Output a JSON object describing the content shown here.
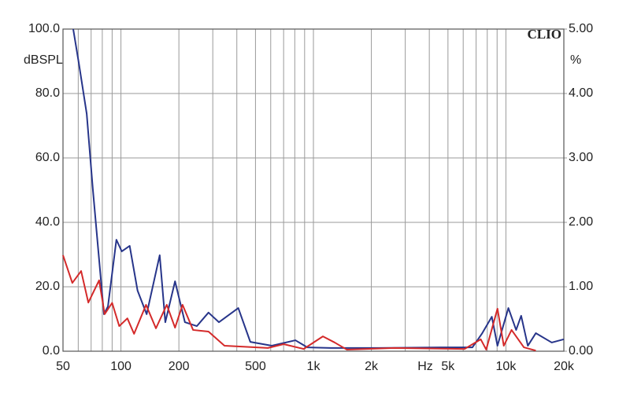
{
  "chart_data": {
    "type": "line",
    "brand": "CLIO",
    "ylabel": "dBSPL",
    "y2label": "%",
    "xlabel": "Hz",
    "xscale": "log",
    "grid": true,
    "xlim": [
      50,
      20000
    ],
    "xticks": [
      50,
      100,
      200,
      500,
      {
        "value": 1000,
        "label": "1k"
      },
      {
        "value": 2000,
        "label": "2k"
      },
      {
        "value": 5000,
        "label": "5k"
      },
      {
        "value": 10000,
        "label": "10k"
      },
      {
        "value": 20000,
        "label": "20k"
      }
    ],
    "xminor": [
      60,
      70,
      80,
      90,
      300,
      400,
      600,
      700,
      800,
      900,
      3000,
      4000,
      6000,
      7000,
      8000,
      9000
    ],
    "ylim": [
      0,
      100
    ],
    "yticks": [
      {
        "value": 0,
        "label": "0.0"
      },
      {
        "value": 20,
        "label": "20.0"
      },
      {
        "value": 40,
        "label": "40.0"
      },
      {
        "value": 60,
        "label": "60.0"
      },
      {
        "value": 80,
        "label": "80.0"
      },
      {
        "value": 100,
        "label": "100.0"
      }
    ],
    "y2lim": [
      0,
      5
    ],
    "y2ticks": [
      {
        "value": 0,
        "label": "0.00"
      },
      {
        "value": 1,
        "label": "1.00"
      },
      {
        "value": 2,
        "label": "2.00"
      },
      {
        "value": 3,
        "label": "3.00"
      },
      {
        "value": 4,
        "label": "4.00"
      },
      {
        "value": 5,
        "label": "5.00"
      }
    ],
    "series": [
      {
        "color": "#27358a",
        "x": [
          56.5,
          60.4,
          66.4,
          71.4,
          77,
          81.6,
          85.6,
          94.7,
          101,
          111,
          122,
          136,
          159,
          170,
          191,
          215,
          248,
          285,
          323,
          407,
          470,
          608,
          806,
          930,
          1230,
          2180,
          4600,
          6700,
          7500,
          8450,
          9040,
          10300,
          11300,
          12000,
          13000,
          14300,
          17300,
          20000
        ],
        "values": [
          100,
          89.5,
          73.7,
          50.5,
          28.5,
          11.5,
          13.9,
          34.6,
          31,
          32.7,
          18.8,
          11.5,
          29.8,
          9,
          21.7,
          9,
          7.8,
          12,
          9,
          13.4,
          2.9,
          1.7,
          3.4,
          1.2,
          1,
          1,
          1.2,
          1.2,
          5.4,
          10.7,
          1.7,
          13.4,
          6.6,
          11,
          1.7,
          5.6,
          2.7,
          3.7
        ]
      },
      {
        "color": "#d42a2a",
        "x": [
          50,
          55.9,
          62.1,
          67.7,
          77,
          82.3,
          90,
          98,
          108,
          117,
          135,
          152,
          173,
          191,
          209,
          237,
          285,
          345,
          580,
          700,
          890,
          1120,
          1290,
          1490,
          2640,
          6100,
          7400,
          7900,
          9040,
          9750,
          10700,
          12400,
          14300
        ],
        "values": [
          29.8,
          21.2,
          24.9,
          15.1,
          22,
          11.5,
          15,
          7.8,
          10.2,
          5.4,
          14.4,
          7.1,
          14.4,
          7.3,
          14.4,
          6.6,
          6.1,
          1.7,
          1,
          2.2,
          0.7,
          4.6,
          2.7,
          0.5,
          1,
          0.7,
          3.7,
          0.5,
          13.2,
          1.7,
          6.6,
          1.2,
          0.2
        ]
      }
    ]
  }
}
